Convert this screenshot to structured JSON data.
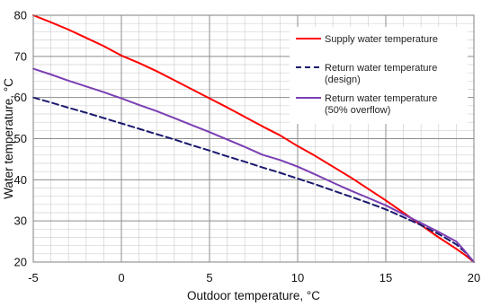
{
  "chart_data": {
    "type": "line",
    "xlabel": "Outdoor  temperature, °C",
    "ylabel": "Water  temperature, °C",
    "xlim": [
      -5,
      20
    ],
    "ylim": [
      20,
      80
    ],
    "xticks": [
      -5,
      0,
      5,
      10,
      15,
      20
    ],
    "yticks": [
      20,
      30,
      40,
      50,
      60,
      70,
      80
    ],
    "xtick_labels": [
      "-5",
      "0",
      "5",
      "10",
      "15",
      "20"
    ],
    "ytick_labels": [
      "20",
      "30",
      "40",
      "50",
      "60",
      "70",
      "80"
    ],
    "grid": "major and minor",
    "legend_position": "top-right",
    "series": [
      {
        "name": "Supply water temperature",
        "color": "#ff0000",
        "style": "solid",
        "x": [
          -5,
          -4,
          -3,
          -2,
          -1,
          0,
          1,
          2,
          3,
          4,
          5,
          6,
          7,
          8,
          9,
          10,
          11,
          12,
          13,
          14,
          15,
          16,
          17,
          18,
          19,
          19.5,
          20
        ],
        "y": [
          80,
          78.3,
          76.5,
          74.5,
          72.5,
          70.2,
          68.4,
          66.4,
          64.2,
          62,
          59.8,
          57.6,
          55.3,
          53,
          50.8,
          48.2,
          45.8,
          43.2,
          40.6,
          37.8,
          35,
          32,
          29,
          26,
          23.2,
          21.7,
          20
        ]
      },
      {
        "name": "Return water temperature\n(design)",
        "color": "#1a1a6e",
        "style": "dashed",
        "x": [
          -5,
          -4,
          -3,
          -2,
          -1,
          0,
          1,
          2,
          3,
          4,
          5,
          6,
          7,
          8,
          9,
          10,
          11,
          12,
          13,
          14,
          15,
          16,
          17,
          18,
          19,
          19.5,
          20
        ],
        "y": [
          60,
          58.8,
          57.5,
          56.3,
          55,
          53.7,
          52.4,
          51.1,
          49.8,
          48.4,
          47.1,
          45.7,
          44.4,
          43,
          41.7,
          40.3,
          38.9,
          37.4,
          35.9,
          34.4,
          32.8,
          30.9,
          29,
          26.8,
          24.3,
          22.4,
          20
        ]
      },
      {
        "name": "Return water temperature\n(50% overflow)",
        "color": "#7b3fb3",
        "style": "solid",
        "x": [
          -5,
          -4,
          -3,
          -2,
          -1,
          0,
          1,
          2,
          3,
          4,
          5,
          6,
          7,
          8,
          9,
          10,
          11,
          12,
          13,
          14,
          15,
          16,
          17,
          18,
          19,
          19.5,
          20
        ],
        "y": [
          67,
          65.6,
          64.1,
          62.7,
          61.3,
          59.8,
          58.2,
          56.7,
          55,
          53.3,
          51.6,
          49.8,
          48,
          46.1,
          44.8,
          43.2,
          41.3,
          39.3,
          37.4,
          35.6,
          33.8,
          31.6,
          29.5,
          27.3,
          25,
          22.6,
          20
        ]
      }
    ]
  }
}
